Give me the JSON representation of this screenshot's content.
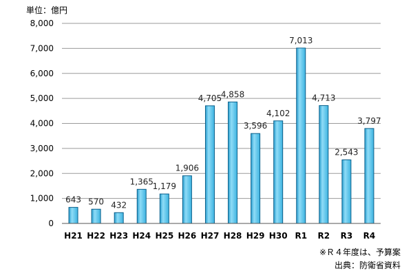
{
  "chart_data": {
    "type": "bar",
    "ylabel": "単位：億円",
    "categories": [
      "H21",
      "H22",
      "H23",
      "H24",
      "H25",
      "H26",
      "H27",
      "H28",
      "H29",
      "H30",
      "R1",
      "R2",
      "R3",
      "R4"
    ],
    "values": [
      643,
      570,
      432,
      1365,
      1179,
      1906,
      4705,
      4858,
      3596,
      4102,
      7013,
      4713,
      2543,
      3797
    ],
    "value_labels": [
      "643",
      "570",
      "432",
      "1,365",
      "1,179",
      "1,906",
      "4,705",
      "4,858",
      "3,596",
      "4,102",
      "7,013",
      "4,713",
      "2,543",
      "3,797"
    ],
    "ylim": [
      0,
      8000
    ],
    "yticks": [
      0,
      1000,
      2000,
      3000,
      4000,
      5000,
      6000,
      7000,
      8000
    ],
    "ytick_labels": [
      "0",
      "1,000",
      "2,000",
      "3,000",
      "4,000",
      "5,000",
      "6,000",
      "7,000",
      "8,000"
    ],
    "grid": true,
    "legend": "none",
    "bar_color": "#5fc6ea"
  },
  "notes": {
    "note1": "※Ｒ４年度は、予算案",
    "note2": "出典：防衛省資料"
  }
}
